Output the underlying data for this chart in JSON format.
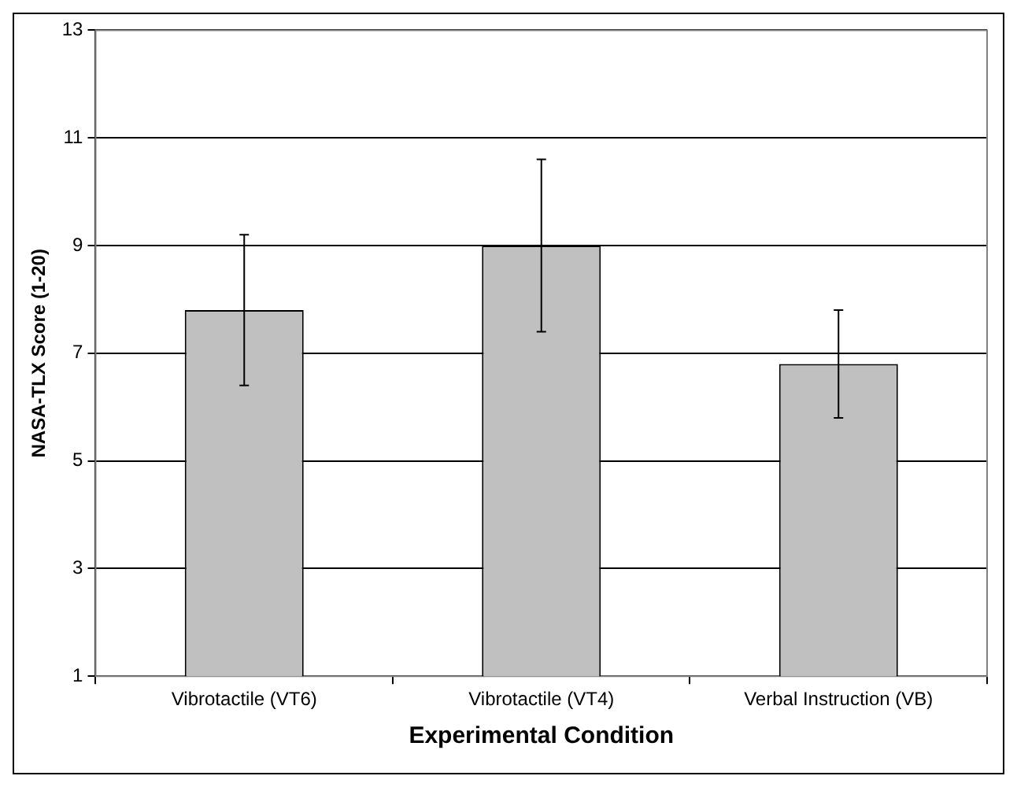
{
  "chart_data": {
    "type": "bar",
    "xlabel": "Experimental Condition",
    "ylabel": "NASA-TLX Score (1-20)",
    "categories": [
      "Vibrotactile (VT6)",
      "Vibrotactile (VT4)",
      "Verbal Instruction (VB)"
    ],
    "values": [
      7.8,
      9.0,
      6.8
    ],
    "color": "#c0c0c0",
    "errors": [
      1.4,
      1.6,
      1.0
    ],
    "ylim": [
      1,
      13
    ],
    "yticks": [
      1,
      3,
      5,
      7,
      9,
      11,
      13
    ],
    "grid": "y",
    "legend": false
  }
}
